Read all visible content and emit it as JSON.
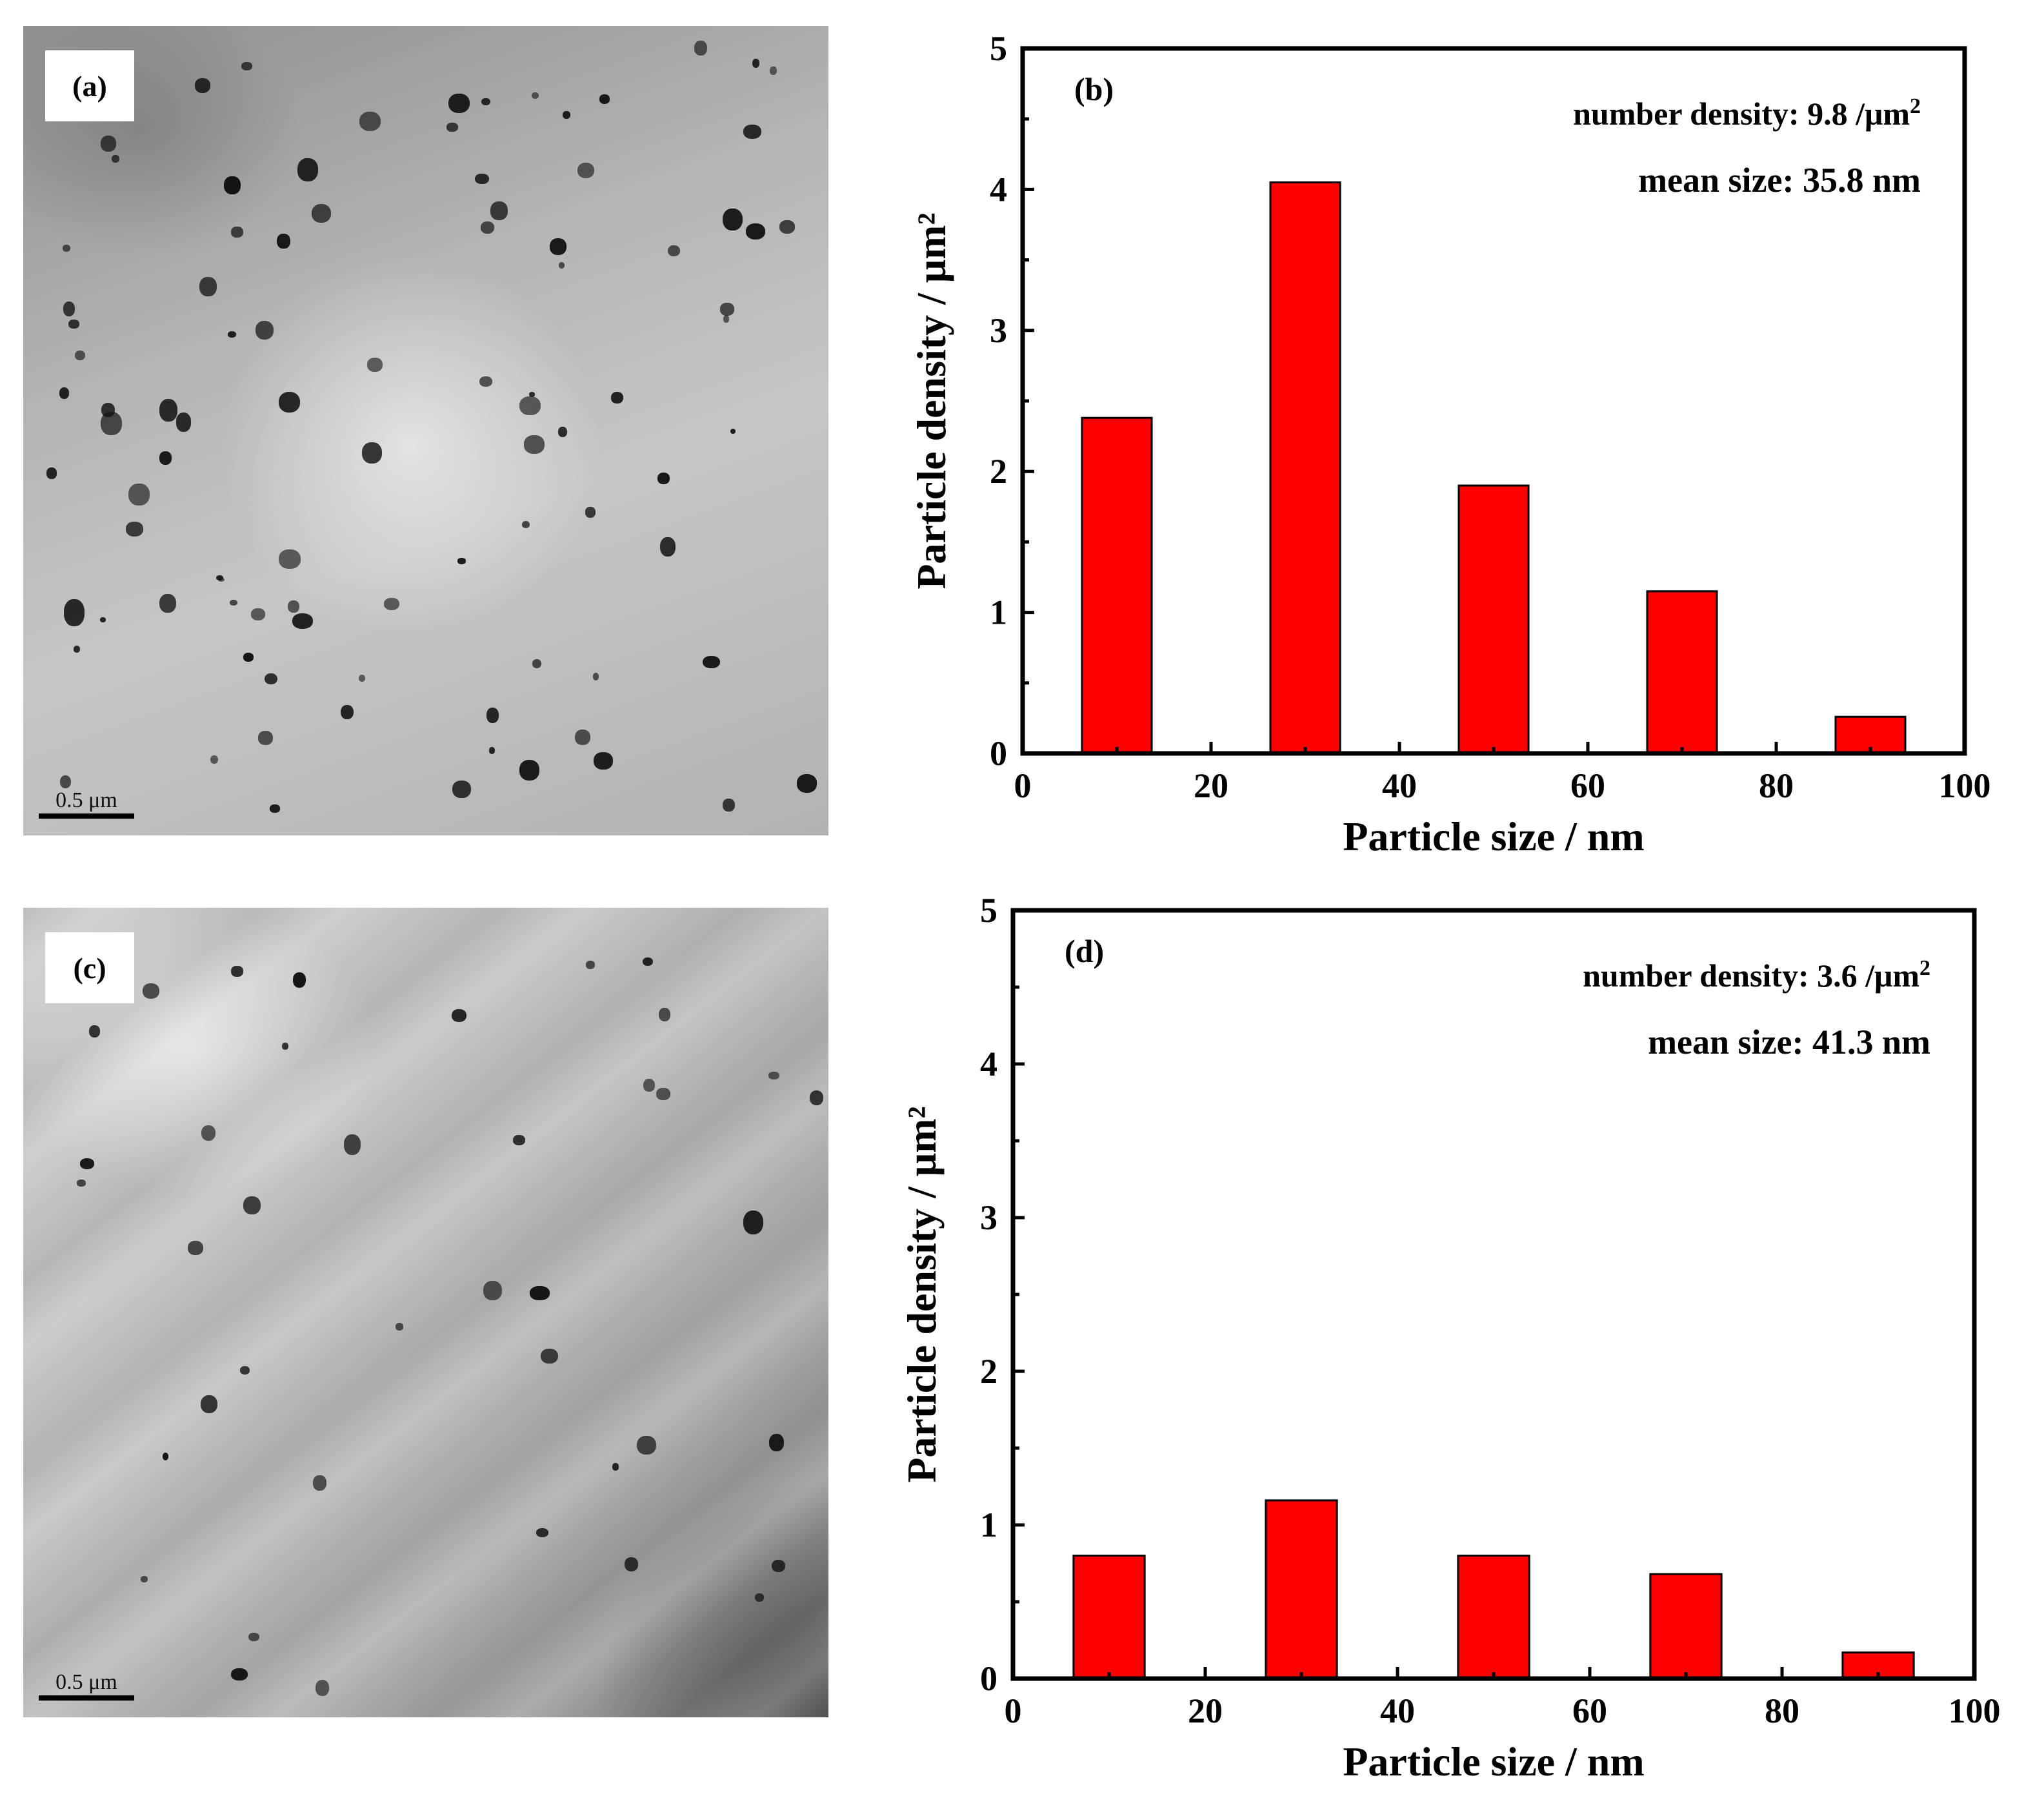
{
  "panels": {
    "a": {
      "label": "(a)",
      "scale_bar": "0.5 μm"
    },
    "c": {
      "label": "(c)",
      "scale_bar": "0.5 μm"
    }
  },
  "chart_data": [
    {
      "type": "bar",
      "panel_label": "(b)",
      "x": [
        10,
        30,
        50,
        70,
        90
      ],
      "values": [
        2.38,
        4.05,
        1.9,
        1.15,
        0.26
      ],
      "xlabel": "Particle size / nm",
      "ylabel": "Particle density / μm²",
      "xlim": [
        0,
        100
      ],
      "ylim": [
        0,
        5
      ],
      "xticks": [
        0,
        20,
        40,
        60,
        80,
        100
      ],
      "yticks": [
        0,
        1,
        2,
        3,
        4,
        5
      ],
      "annotation_density_prefix": "number density: 9.8 /μm",
      "annotation_density_sup": "2",
      "annotation_mean": "mean size: 35.8 nm",
      "bar_color": "#ff0000",
      "grid": false
    },
    {
      "type": "bar",
      "panel_label": "(d)",
      "x": [
        10,
        30,
        50,
        70,
        90
      ],
      "values": [
        0.8,
        1.16,
        0.8,
        0.68,
        0.17
      ],
      "xlabel": "Particle size / nm",
      "ylabel": "Particle density / μm²",
      "xlim": [
        0,
        100
      ],
      "ylim": [
        0,
        5
      ],
      "xticks": [
        0,
        20,
        40,
        60,
        80,
        100
      ],
      "yticks": [
        0,
        1,
        2,
        3,
        4,
        5
      ],
      "annotation_density_prefix": "number density: 3.6 /μm",
      "annotation_density_sup": "2",
      "annotation_mean": "mean size: 41.3 nm",
      "bar_color": "#ff0000",
      "grid": false
    }
  ]
}
